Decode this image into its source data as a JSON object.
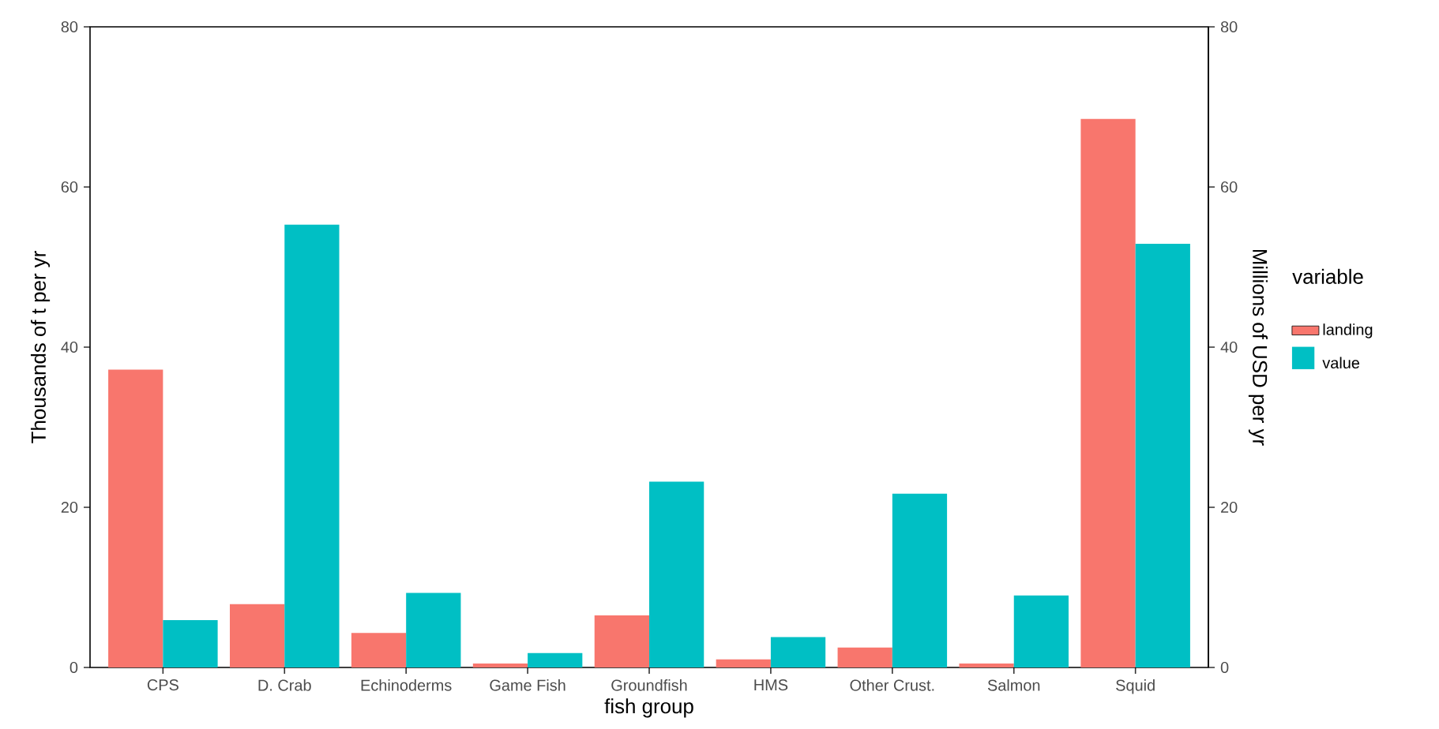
{
  "chart_data": {
    "type": "bar",
    "xlabel": "fish group",
    "ylabel": "Thousands of t per yr",
    "y2label": "Millions of USD per yr",
    "legend_title": "variable",
    "legend": "right",
    "categories": [
      "CPS",
      "D. Crab",
      "Echinoderms",
      "Game Fish",
      "Groundfish",
      "HMS",
      "Other Crust.",
      "Salmon",
      "Squid"
    ],
    "ylim": [
      0,
      80
    ],
    "yticks": [
      0,
      20,
      40,
      60,
      80
    ],
    "y2lim": [
      0,
      80
    ],
    "y2ticks": [
      0,
      20,
      40,
      60,
      80
    ],
    "series": [
      {
        "name": "landing",
        "color": "#f8766d",
        "values": [
          37.2,
          7.9,
          4.3,
          0.5,
          6.5,
          1.0,
          2.5,
          0.5,
          68.5
        ]
      },
      {
        "name": "value",
        "color": "#00bfc4",
        "axis": "y2",
        "values": [
          5.9,
          55.3,
          9.3,
          1.8,
          23.2,
          3.8,
          21.7,
          9.0,
          52.9
        ]
      }
    ]
  }
}
